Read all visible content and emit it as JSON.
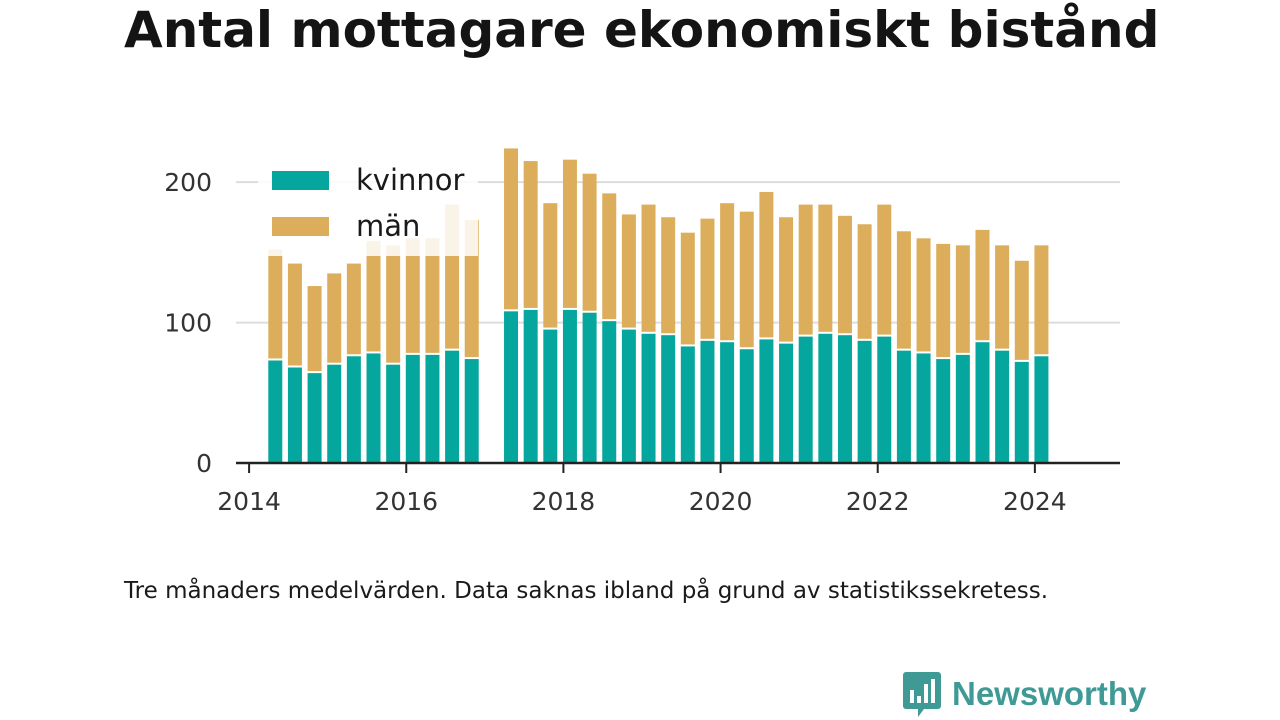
{
  "title": "Antal mottagare ekonomiskt bistånd",
  "caption": "Tre månaders medelvärden. Data saknas ibland på grund av statistikssekretess.",
  "brand": {
    "name": "Newsworthy",
    "logo_icon": "bar-chart-speech-bubble-icon"
  },
  "colors": {
    "kvinnor": "#05a69d",
    "man": "#dcae5c",
    "grid": "#dddddd",
    "axis": "#222222",
    "text": "#333333"
  },
  "chart_data": {
    "type": "bar",
    "stacked": true,
    "x": [
      "2014-05",
      "2014-08",
      "2014-11",
      "2015-02",
      "2015-05",
      "2015-08",
      "2015-11",
      "2016-02",
      "2016-05",
      "2016-08",
      "2016-11",
      "2017-02",
      "2017-05",
      "2017-08",
      "2017-11",
      "2018-02",
      "2018-05",
      "2018-08",
      "2018-11",
      "2019-02",
      "2019-05",
      "2019-08",
      "2019-11",
      "2020-02",
      "2020-05",
      "2020-08",
      "2020-11",
      "2021-02",
      "2021-05",
      "2021-08",
      "2021-11",
      "2022-02",
      "2022-05",
      "2022-08",
      "2022-11",
      "2023-02",
      "2023-05",
      "2023-08",
      "2023-11",
      "2024-02"
    ],
    "series": [
      {
        "name": "kvinnor",
        "values": [
          73,
          68,
          64,
          70,
          76,
          78,
          70,
          77,
          77,
          80,
          74,
          null,
          108,
          109,
          95,
          109,
          107,
          101,
          95,
          92,
          91,
          83,
          87,
          86,
          81,
          88,
          85,
          90,
          92,
          91,
          87,
          90,
          80,
          78,
          74,
          77,
          86,
          80,
          72,
          76
        ]
      },
      {
        "name": "män",
        "values": [
          79,
          74,
          62,
          65,
          66,
          80,
          85,
          83,
          83,
          104,
          99,
          null,
          116,
          106,
          90,
          107,
          99,
          91,
          82,
          92,
          84,
          81,
          87,
          99,
          98,
          105,
          90,
          94,
          92,
          85,
          83,
          94,
          85,
          82,
          82,
          78,
          80,
          75,
          72,
          79
        ]
      }
    ],
    "xticks": [
      "2014",
      "2016",
      "2018",
      "2020",
      "2022",
      "2024"
    ],
    "xlim": [
      "2013-11",
      "2025-02"
    ],
    "yticks": [
      0,
      100,
      200
    ],
    "ylim": [
      0,
      230
    ],
    "ylabel": "",
    "xlabel": "",
    "legend": [
      "kvinnor",
      "män"
    ],
    "legend_position": "top-left",
    "grid": true
  }
}
